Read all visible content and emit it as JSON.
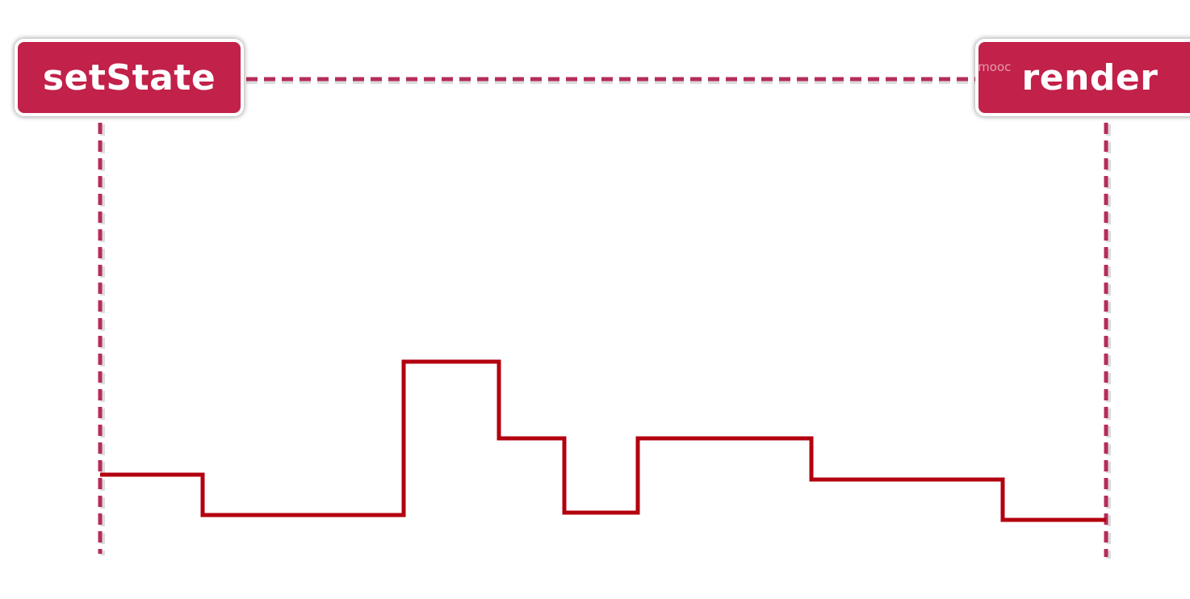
{
  "left_box": {
    "label": "setState"
  },
  "right_box": {
    "label": "render"
  },
  "watermark": {
    "text": "imooc"
  },
  "colors": {
    "box": "#c2214a",
    "dashed": "#b52d5a",
    "step_line": "#b3000f"
  },
  "step_line_levels": [
    0.6,
    0.43,
    1.0,
    0.67,
    0.44,
    0.67,
    0.51,
    0.4
  ]
}
